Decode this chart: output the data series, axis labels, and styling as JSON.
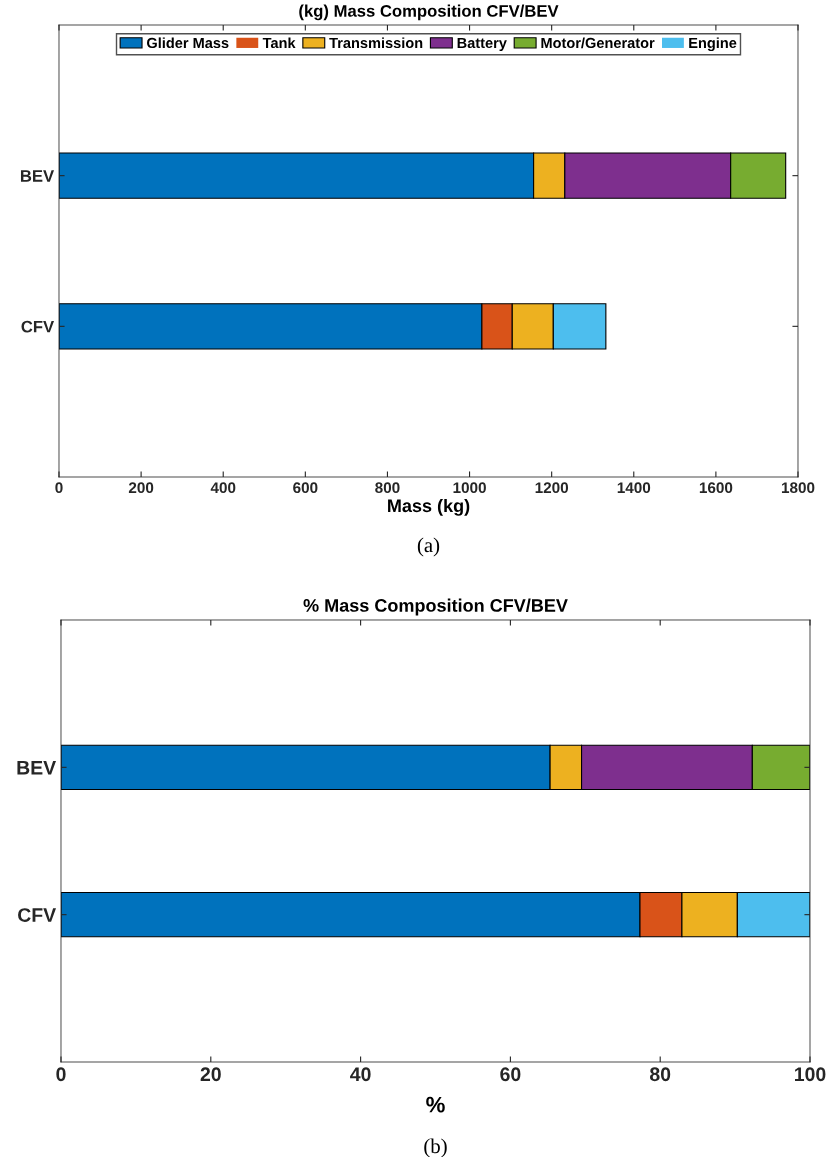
{
  "chart_data": [
    {
      "type": "bar",
      "orientation": "horizontal",
      "stacked": true,
      "title": "(kg) Mass Composition CFV/BEV",
      "xlabel": "Mass (kg)",
      "categories": [
        "BEV",
        "CFV"
      ],
      "series": [
        {
          "name": "Glider Mass",
          "color": "#0072bd",
          "values": [
            1156,
            1030
          ]
        },
        {
          "name": "Tank",
          "color": "#d95319",
          "values": [
            0,
            74
          ]
        },
        {
          "name": "Transmission",
          "color": "#edb120",
          "values": [
            76,
            100
          ]
        },
        {
          "name": "Battery",
          "color": "#7e2f8e",
          "values": [
            404,
            0
          ]
        },
        {
          "name": "Motor/Generator",
          "color": "#77ac30",
          "values": [
            134,
            0
          ]
        },
        {
          "name": "Engine",
          "color": "#4dbeee",
          "values": [
            0,
            128
          ]
        }
      ],
      "xlim": [
        0,
        1800
      ],
      "xticks": [
        0,
        200,
        400,
        600,
        800,
        1000,
        1200,
        1400,
        1600,
        1800
      ],
      "grid": false,
      "legend": "top",
      "annotations": [
        "(a)"
      ]
    },
    {
      "type": "bar",
      "orientation": "horizontal",
      "stacked": true,
      "title": "% Mass Composition CFV/BEV",
      "xlabel": "%",
      "categories": [
        "BEV",
        "CFV"
      ],
      "series": [
        {
          "color": "#0072bd",
          "values": [
            65.3,
            77.3
          ]
        },
        {
          "color": "#d95319",
          "values": [
            0,
            5.6
          ]
        },
        {
          "color": "#edb120",
          "values": [
            4.2,
            7.4
          ]
        },
        {
          "color": "#7e2f8e",
          "values": [
            22.8,
            0
          ]
        },
        {
          "color": "#77ac30",
          "values": [
            7.7,
            0
          ]
        },
        {
          "color": "#4dbeee",
          "values": [
            0,
            9.7
          ]
        }
      ],
      "xlim": [
        0,
        100
      ],
      "xticks": [
        0,
        20,
        40,
        60,
        80,
        100
      ],
      "grid": false,
      "legend": false,
      "annotations": [
        "(b)"
      ]
    }
  ]
}
